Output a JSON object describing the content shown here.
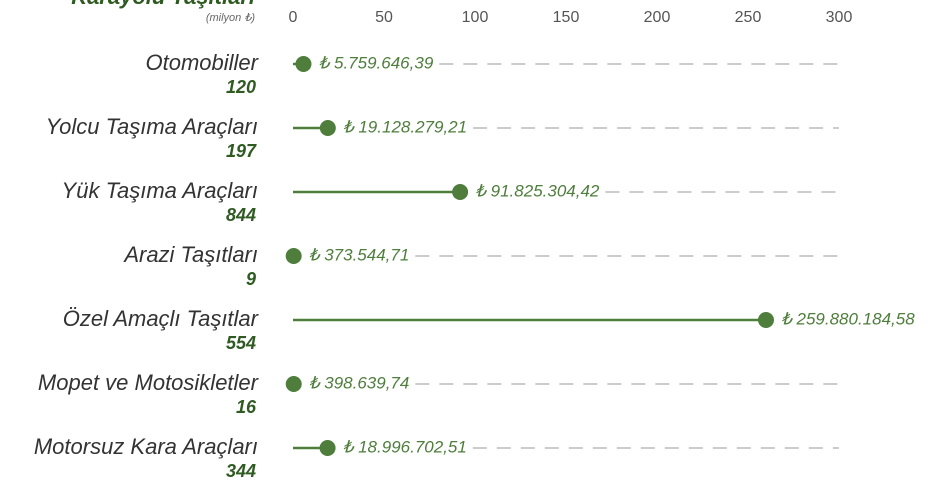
{
  "chart_data": {
    "type": "lollipop",
    "title": "Karayolu Taşıtları",
    "subtitle": "(milyon ₺)",
    "categories": [
      "Otomobiller",
      "Yolcu Taşıma Araçları",
      "Yük Taşıma Araçları",
      "Arazi Taşıtları",
      "Özel Amaçlı Taşıtlar",
      "Mopet ve Motosikletler",
      "Motorsuz Kara Araçları"
    ],
    "counts": [
      120,
      197,
      844,
      9,
      554,
      16,
      344
    ],
    "values": [
      5.75964639,
      19.12827921,
      91.82530442,
      0.37354471,
      259.88018458,
      0.39863974,
      18.99670251
    ],
    "value_labels": [
      "₺ 5.759.646,39",
      "₺ 19.128.279,21",
      "₺ 91.825.304,42",
      "₺ 373.544,71",
      "₺ 259.880.184,58",
      "₺ 398.639,74",
      "₺ 18.996.702,51"
    ],
    "color": "#4e7d3c",
    "xlim": [
      0,
      300
    ],
    "xticks": [
      0,
      50,
      100,
      150,
      200,
      250,
      300
    ]
  }
}
